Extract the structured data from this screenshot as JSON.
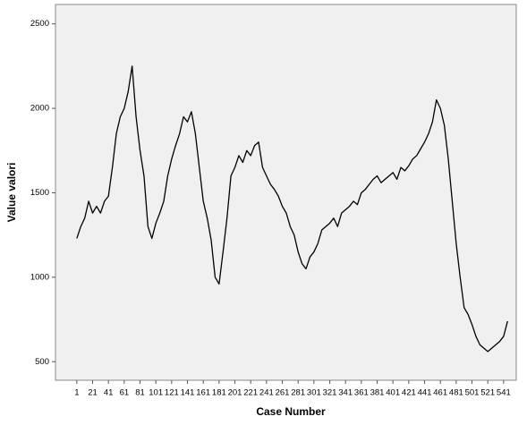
{
  "chart_data": {
    "type": "line",
    "xlabel": "Case Number",
    "ylabel": "Value valori",
    "x": [
      1,
      6,
      11,
      16,
      21,
      26,
      31,
      36,
      41,
      46,
      51,
      56,
      61,
      66,
      71,
      76,
      81,
      86,
      91,
      96,
      101,
      106,
      111,
      116,
      121,
      126,
      131,
      136,
      141,
      146,
      151,
      156,
      161,
      166,
      171,
      176,
      181,
      186,
      191,
      196,
      201,
      206,
      211,
      216,
      221,
      226,
      231,
      236,
      241,
      246,
      251,
      256,
      261,
      266,
      271,
      276,
      281,
      286,
      291,
      296,
      301,
      306,
      311,
      316,
      321,
      326,
      331,
      336,
      341,
      346,
      351,
      356,
      361,
      366,
      371,
      376,
      381,
      386,
      391,
      396,
      401,
      406,
      411,
      416,
      421,
      426,
      431,
      436,
      441,
      446,
      451,
      456,
      461,
      466,
      471,
      476,
      481,
      486,
      491,
      496,
      501,
      506,
      511,
      516,
      521,
      526,
      531,
      536,
      541,
      546
    ],
    "values": [
      1230,
      1300,
      1350,
      1450,
      1380,
      1420,
      1380,
      1450,
      1480,
      1650,
      1850,
      1950,
      2000,
      2100,
      2250,
      1950,
      1750,
      1600,
      1300,
      1230,
      1320,
      1380,
      1450,
      1600,
      1700,
      1780,
      1850,
      1950,
      1920,
      1980,
      1850,
      1650,
      1450,
      1350,
      1220,
      1000,
      960,
      1150,
      1350,
      1600,
      1650,
      1720,
      1680,
      1750,
      1720,
      1780,
      1800,
      1650,
      1600,
      1550,
      1520,
      1480,
      1420,
      1380,
      1300,
      1250,
      1150,
      1080,
      1050,
      1120,
      1150,
      1200,
      1280,
      1300,
      1320,
      1350,
      1300,
      1380,
      1400,
      1420,
      1450,
      1430,
      1500,
      1520,
      1550,
      1580,
      1600,
      1560,
      1580,
      1600,
      1620,
      1580,
      1650,
      1630,
      1660,
      1700,
      1720,
      1760,
      1800,
      1850,
      1920,
      2050,
      2000,
      1900,
      1700,
      1450,
      1200,
      1000,
      820,
      780,
      720,
      650,
      600,
      580,
      560,
      580,
      600,
      620,
      650,
      740
    ],
    "color": "#000000",
    "xlim": [
      -26,
      557
    ],
    "xticks": [
      1,
      21,
      41,
      61,
      81,
      101,
      121,
      141,
      161,
      181,
      201,
      221,
      241,
      261,
      281,
      301,
      321,
      341,
      361,
      381,
      401,
      421,
      441,
      461,
      481,
      501,
      521,
      541
    ],
    "ylim": [
      390,
      2615
    ],
    "yticks": [
      500,
      1000,
      1500,
      2000,
      2500
    ],
    "grid": false
  }
}
